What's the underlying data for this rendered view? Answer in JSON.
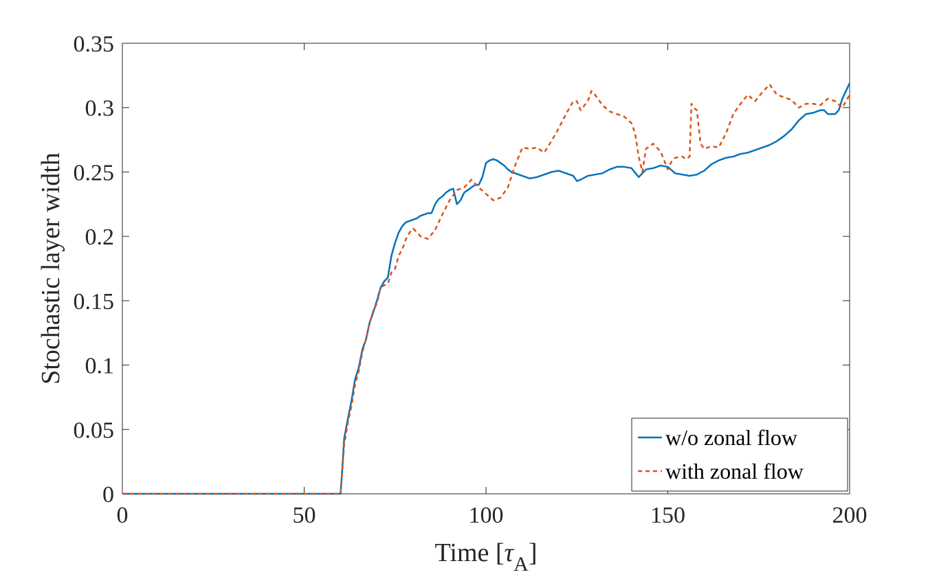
{
  "chart_data": {
    "type": "line",
    "title": "",
    "xlabel": "Time [",
    "xlabel_symbol": "τ",
    "xlabel_subscript": "A",
    "xlabel_close": "]",
    "ylabel": "Stochastic layer width",
    "xlim": [
      0,
      200
    ],
    "ylim": [
      0,
      0.35
    ],
    "xticks": [
      0,
      50,
      100,
      150,
      200
    ],
    "xtick_labels": [
      "0",
      "50",
      "100",
      "150",
      "200"
    ],
    "yticks": [
      0,
      0.05,
      0.1,
      0.15,
      0.2,
      0.25,
      0.3,
      0.35
    ],
    "ytick_labels": [
      "0",
      "0.05",
      "0.1",
      "0.15",
      "0.2",
      "0.25",
      "0.3",
      "0.35"
    ],
    "grid": false,
    "legend_position": "bottom-right",
    "series": [
      {
        "name": "w/o zonal flow",
        "color": "#0072BD",
        "style": "solid",
        "x": [
          0,
          60,
          60.5,
          61,
          62,
          63,
          64,
          65,
          66,
          67,
          68,
          69,
          70,
          71,
          72,
          73,
          74,
          75,
          76,
          77,
          78,
          79,
          80,
          81,
          82,
          83,
          84,
          85,
          86,
          87,
          88,
          89,
          90,
          91,
          92,
          93,
          94,
          95,
          96,
          97,
          98,
          99,
          100,
          101,
          102,
          103,
          104,
          105,
          106,
          107,
          108,
          110,
          112,
          114,
          116,
          118,
          120,
          122,
          124,
          125,
          126,
          128,
          130,
          132,
          134,
          136,
          138,
          140,
          142,
          144,
          146,
          148,
          150,
          152,
          154,
          156,
          158,
          160,
          162,
          164,
          166,
          168,
          170,
          172,
          174,
          176,
          178,
          180,
          182,
          184,
          186,
          188,
          190,
          192,
          193,
          194,
          196,
          197,
          198,
          200
        ],
        "y": [
          0,
          0,
          0.02,
          0.043,
          0.058,
          0.072,
          0.089,
          0.098,
          0.112,
          0.12,
          0.133,
          0.141,
          0.15,
          0.16,
          0.165,
          0.168,
          0.185,
          0.195,
          0.203,
          0.208,
          0.211,
          0.212,
          0.213,
          0.214,
          0.216,
          0.217,
          0.218,
          0.218,
          0.225,
          0.229,
          0.231,
          0.234,
          0.236,
          0.237,
          0.225,
          0.228,
          0.234,
          0.236,
          0.238,
          0.24,
          0.24,
          0.246,
          0.257,
          0.259,
          0.26,
          0.259,
          0.257,
          0.255,
          0.252,
          0.25,
          0.249,
          0.247,
          0.245,
          0.246,
          0.248,
          0.25,
          0.251,
          0.249,
          0.247,
          0.243,
          0.244,
          0.247,
          0.248,
          0.249,
          0.252,
          0.254,
          0.254,
          0.253,
          0.246,
          0.252,
          0.253,
          0.255,
          0.254,
          0.249,
          0.248,
          0.247,
          0.248,
          0.251,
          0.256,
          0.259,
          0.261,
          0.262,
          0.264,
          0.265,
          0.267,
          0.269,
          0.271,
          0.274,
          0.278,
          0.283,
          0.29,
          0.295,
          0.296,
          0.298,
          0.298,
          0.295,
          0.295,
          0.298,
          0.307,
          0.319
        ]
      },
      {
        "name": "with zonal flow",
        "color": "#D95319",
        "style": "dashed",
        "x": [
          0,
          60,
          60.5,
          61,
          62,
          63,
          64,
          65,
          66,
          67,
          68,
          69,
          70,
          71,
          72,
          73,
          74,
          75,
          76,
          77,
          78,
          79,
          80,
          82,
          84,
          86,
          88,
          90,
          92,
          94,
          96,
          98,
          100,
          102,
          104,
          106,
          108,
          110,
          112,
          114,
          116,
          118,
          120,
          122,
          124,
          125,
          126,
          128,
          129,
          130,
          132,
          134,
          136,
          138,
          140,
          141,
          142,
          143,
          144,
          146,
          148,
          150,
          151,
          152,
          154,
          155,
          156,
          156.5,
          157,
          158,
          159,
          160,
          162,
          164,
          166,
          168,
          170,
          172,
          174,
          176,
          178,
          180,
          182,
          184,
          186,
          188,
          190,
          192,
          194,
          196,
          198,
          200
        ],
        "y": [
          0,
          0,
          0.018,
          0.038,
          0.055,
          0.068,
          0.085,
          0.095,
          0.11,
          0.12,
          0.133,
          0.142,
          0.148,
          0.16,
          0.162,
          0.163,
          0.172,
          0.175,
          0.185,
          0.19,
          0.198,
          0.203,
          0.206,
          0.2,
          0.198,
          0.205,
          0.217,
          0.228,
          0.236,
          0.238,
          0.244,
          0.238,
          0.233,
          0.228,
          0.23,
          0.238,
          0.255,
          0.269,
          0.268,
          0.269,
          0.265,
          0.274,
          0.284,
          0.295,
          0.305,
          0.305,
          0.298,
          0.305,
          0.313,
          0.31,
          0.302,
          0.297,
          0.295,
          0.293,
          0.288,
          0.28,
          0.262,
          0.25,
          0.268,
          0.272,
          0.266,
          0.252,
          0.258,
          0.261,
          0.262,
          0.26,
          0.262,
          0.303,
          0.3,
          0.298,
          0.272,
          0.268,
          0.27,
          0.269,
          0.28,
          0.295,
          0.303,
          0.31,
          0.305,
          0.312,
          0.318,
          0.31,
          0.308,
          0.306,
          0.3,
          0.303,
          0.303,
          0.302,
          0.307,
          0.305,
          0.3,
          0.31
        ]
      }
    ]
  }
}
